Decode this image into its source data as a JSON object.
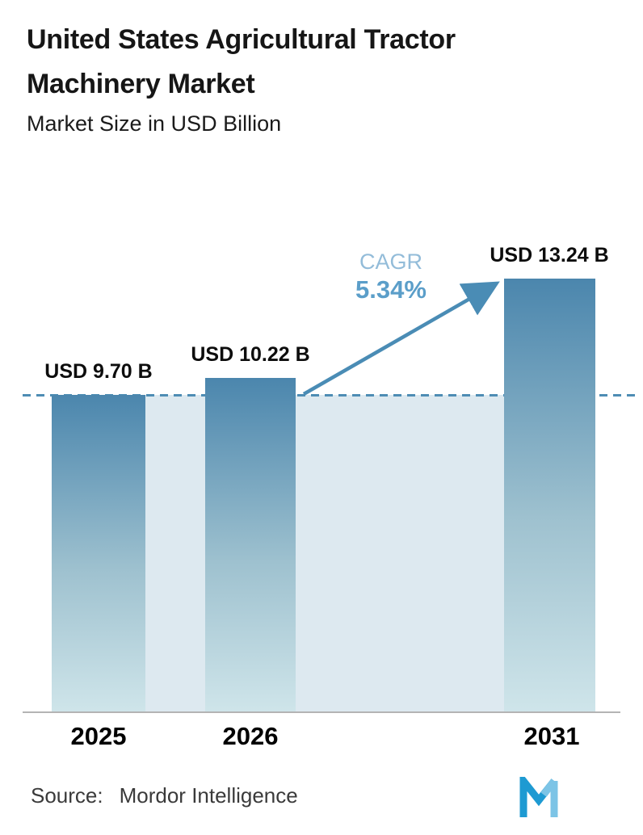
{
  "header": {
    "title_lines": [
      "United States Agricultural Tractor",
      "Machinery Market"
    ],
    "subtitle": "Market Size in USD Billion"
  },
  "chart_data": {
    "type": "bar",
    "title": "United States Agricultural Tractor Machinery Market",
    "subtitle": "Market Size in USD Billion",
    "categories": [
      "2025",
      "2026",
      "2031"
    ],
    "values": [
      9.7,
      10.22,
      13.24
    ],
    "value_labels": [
      "USD 9.70 B",
      "USD 10.22 B",
      "USD 13.24 B"
    ],
    "unit": "USD Billion",
    "cagr_label": "CAGR",
    "cagr_value": "5.34%",
    "dashed_reference_value": 9.7,
    "ylim": [
      0,
      14.5
    ],
    "grid": false,
    "legend": false,
    "colors": {
      "bar_top": "#4b86ad",
      "bar_mid": "#9ec1cf",
      "bar_bottom": "#cfe5ea",
      "dashed_line": "#4e8db4",
      "area_fill": "#dde9f0",
      "cagr_text": "#93bcd9",
      "cagr_value_text": "#5b9ec9",
      "arrow": "#4a8cb5"
    }
  },
  "footer": {
    "source_label": "Source:",
    "source_value": "Mordor Intelligence"
  }
}
